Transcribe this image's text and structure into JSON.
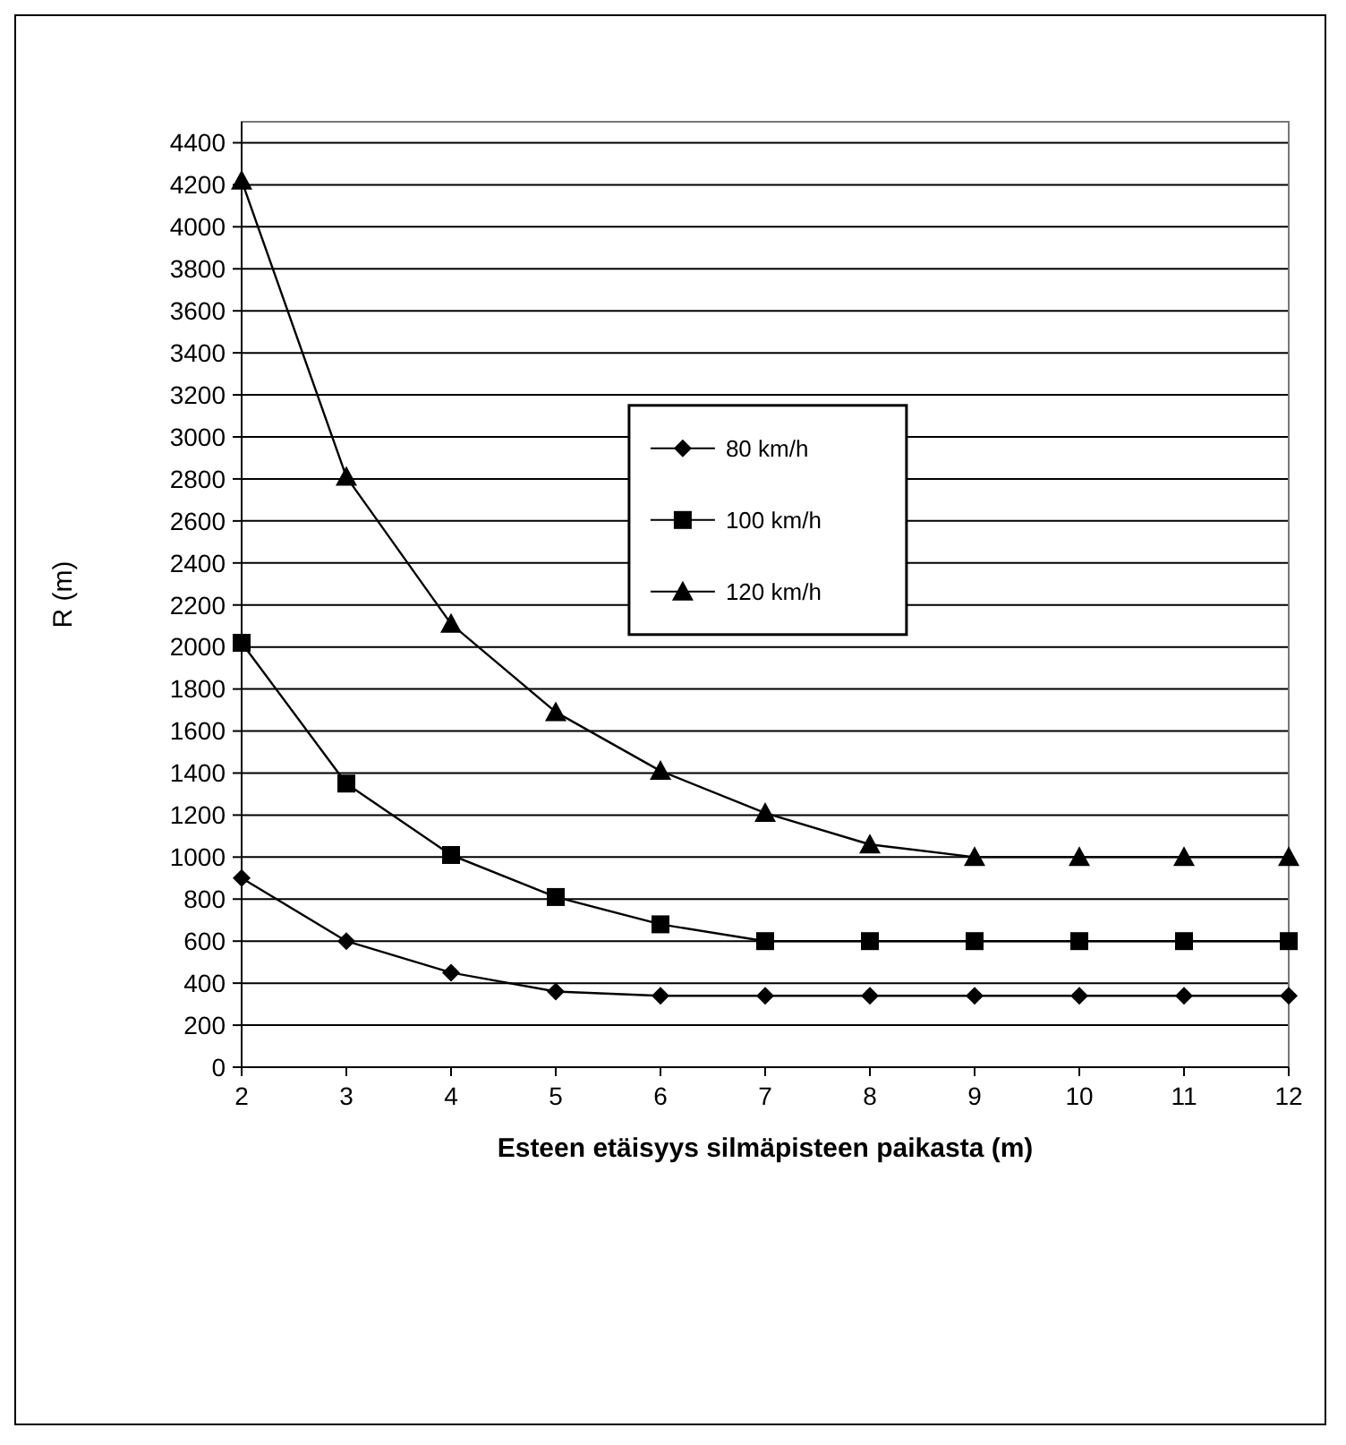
{
  "chart_data": {
    "type": "line",
    "xlabel": "Esteen etäisyys silmäpisteen paikasta (m)",
    "ylabel": "R (m)",
    "x": [
      2,
      3,
      4,
      5,
      6,
      7,
      8,
      9,
      10,
      11,
      12
    ],
    "series": [
      {
        "name": "80 km/h",
        "color": "#000000",
        "marker": "diamond",
        "values": [
          900,
          600,
          450,
          360,
          340,
          340,
          340,
          340,
          340,
          340,
          340
        ]
      },
      {
        "name": "100 km/h",
        "color": "#000000",
        "marker": "square",
        "values": [
          2020,
          1350,
          1010,
          810,
          680,
          600,
          600,
          600,
          600,
          600,
          600
        ]
      },
      {
        "name": "120 km/h",
        "color": "#000000",
        "marker": "triangle",
        "values": [
          4220,
          2810,
          2110,
          1690,
          1410,
          1210,
          1060,
          1000,
          1000,
          1000,
          1000
        ]
      }
    ],
    "xlim": [
      2,
      12
    ],
    "xticks": [
      2,
      3,
      4,
      5,
      6,
      7,
      8,
      9,
      10,
      11,
      12
    ],
    "ylim": [
      0,
      4500
    ],
    "yticks": [
      0,
      200,
      400,
      600,
      800,
      1000,
      1200,
      1400,
      1600,
      1800,
      2000,
      2200,
      2400,
      2600,
      2800,
      3000,
      3200,
      3400,
      3600,
      3800,
      4000,
      4200,
      4400
    ],
    "grid": "y",
    "legend": "top right",
    "line_style": "solid"
  }
}
